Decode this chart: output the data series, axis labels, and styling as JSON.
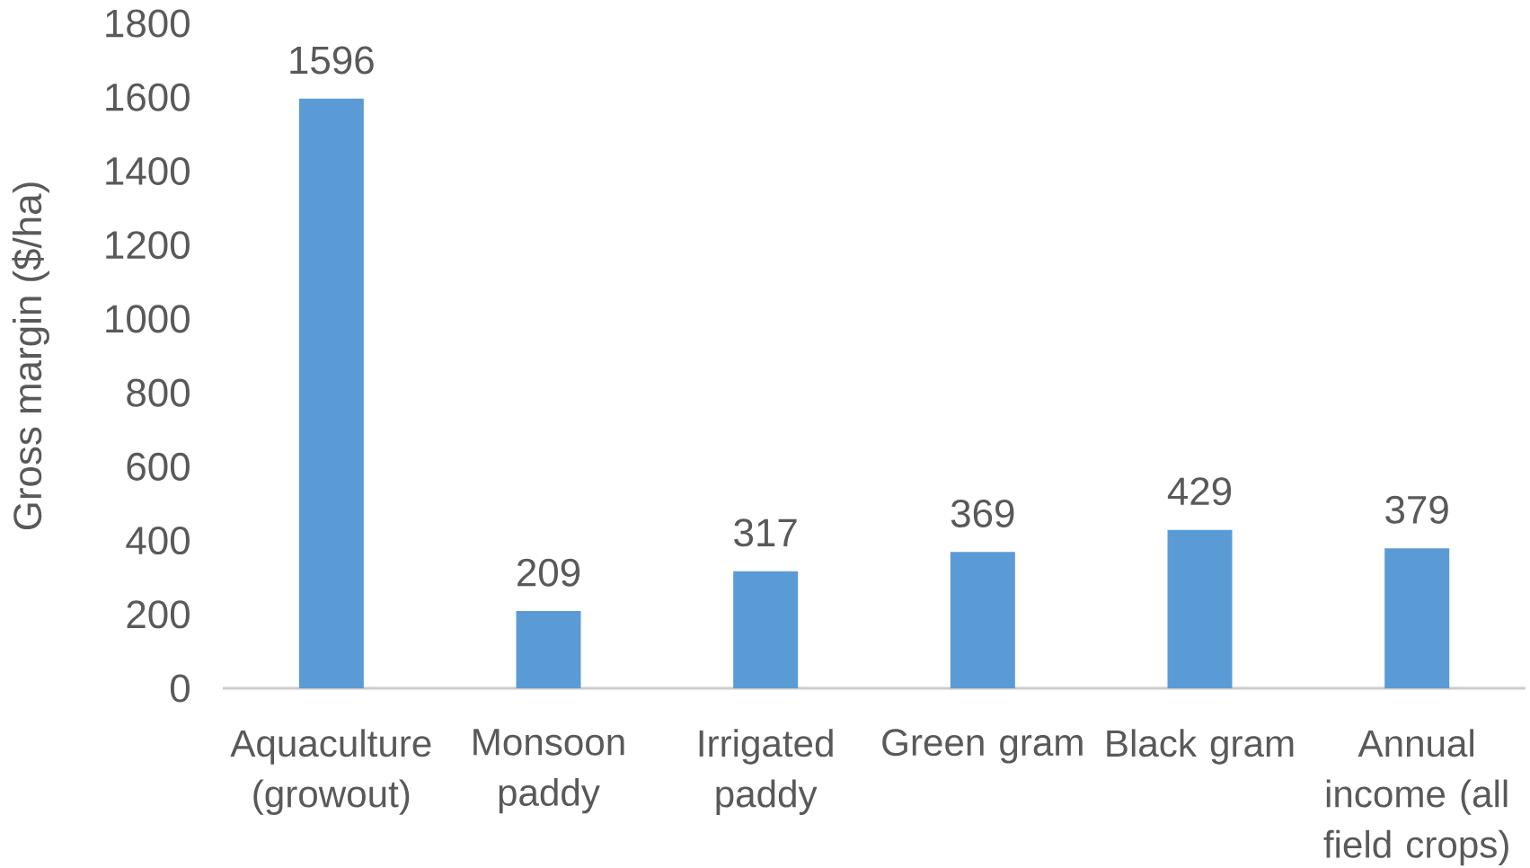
{
  "chart_data": {
    "type": "bar",
    "ylabel": "Gross margin ($/ha)",
    "categories": [
      "Aquaculture (growout)",
      "Monsoon paddy",
      "Irrigated paddy",
      "Green gram",
      "Black gram",
      "Annual income (all field crops)"
    ],
    "values": [
      1596,
      209,
      317,
      369,
      429,
      379
    ],
    "color": "#5b9bd5",
    "ylim": [
      0,
      1800
    ],
    "yticks": [
      0,
      200,
      400,
      600,
      800,
      1000,
      1200,
      1400,
      1600,
      1800
    ],
    "data_labels": true
  }
}
